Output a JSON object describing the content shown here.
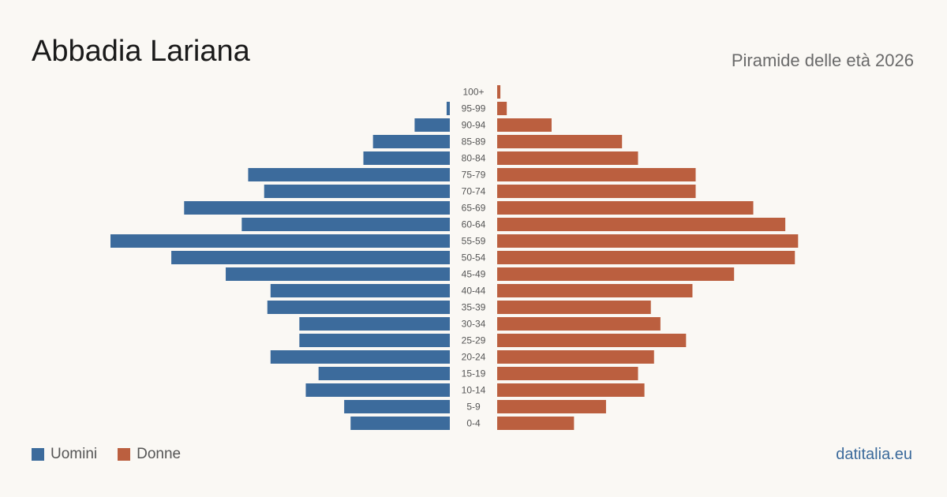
{
  "title": "Abbadia Lariana",
  "subtitle": "Piramide delle età 2026",
  "source": "datitalia.eu",
  "colors": {
    "men": "#3c6b9c",
    "women": "#bb5f3f"
  },
  "chart_data": {
    "type": "bar",
    "orientation": "horizontal-pyramid",
    "categories": [
      "100+",
      "95-99",
      "90-94",
      "85-89",
      "80-84",
      "75-79",
      "70-74",
      "65-69",
      "60-64",
      "55-59",
      "50-54",
      "45-49",
      "40-44",
      "35-39",
      "30-34",
      "25-29",
      "20-24",
      "15-19",
      "10-14",
      "5-9",
      "0-4"
    ],
    "series": [
      {
        "name": "Uomini",
        "values": [
          0,
          1,
          11,
          24,
          27,
          63,
          58,
          83,
          65,
          106,
          87,
          70,
          56,
          57,
          47,
          47,
          56,
          41,
          45,
          33,
          31
        ]
      },
      {
        "name": "Donne",
        "values": [
          1,
          3,
          17,
          39,
          44,
          62,
          62,
          80,
          90,
          94,
          93,
          74,
          61,
          48,
          51,
          59,
          49,
          44,
          46,
          34,
          24
        ]
      }
    ],
    "legend": "bottom-left",
    "grid": false
  }
}
